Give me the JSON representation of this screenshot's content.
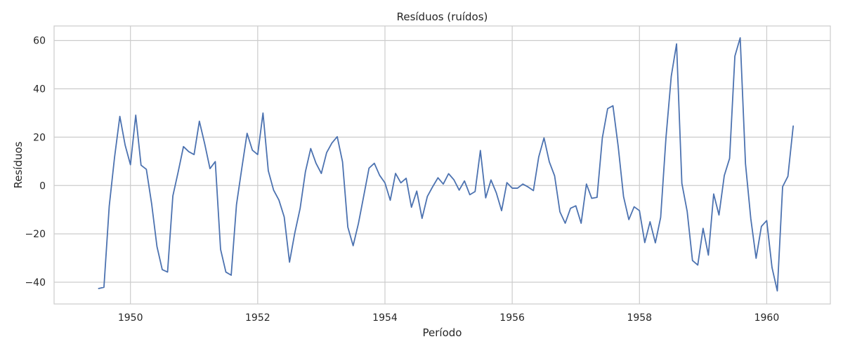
{
  "chart_data": {
    "type": "line",
    "title": "Resíduos (ruídos)",
    "xlabel": "Período",
    "ylabel": "Resíduos",
    "xlim": [
      1948.8,
      1961.0
    ],
    "ylim": [
      -49,
      66
    ],
    "grid": true,
    "x_ticks": [
      1950,
      1952,
      1954,
      1956,
      1958,
      1960
    ],
    "x_tick_labels": [
      "1950",
      "1952",
      "1954",
      "1956",
      "1958",
      "1960"
    ],
    "y_ticks": [
      -40,
      -20,
      0,
      20,
      40,
      60
    ],
    "y_tick_labels": [
      "−40",
      "−20",
      "0",
      "20",
      "40",
      "60"
    ],
    "line_color": "#4c72b0",
    "series": [
      {
        "start": 1949.5,
        "step": 0.08333,
        "values": [
          -42.6,
          -42.1,
          -8.5,
          11.6,
          28.6,
          16.7,
          8.6,
          29.1,
          8.4,
          6.7,
          -7.6,
          -25.2,
          -34.8,
          -35.8,
          -4.3,
          5.6,
          16.1,
          14.0,
          12.8,
          26.6,
          17.3,
          7.0,
          9.9,
          -26.4,
          -35.8,
          -37.1,
          -7.9,
          7.1,
          21.6,
          14.6,
          12.8,
          30.0,
          6.1,
          -1.9,
          -6.0,
          -13.0,
          -31.7,
          -19.6,
          -9.5,
          5.7,
          15.3,
          9.2,
          5.0,
          13.6,
          17.6,
          20.2,
          9.8,
          -17.2,
          -24.9,
          -15.7,
          -4.3,
          7.2,
          9.2,
          4.2,
          1.1,
          -6.1,
          5.0,
          1.1,
          3.0,
          -9.0,
          -2.3,
          -13.6,
          -4.5,
          -0.5,
          3.2,
          0.6,
          4.9,
          2.4,
          -1.9,
          1.9,
          -3.8,
          -2.5,
          14.5,
          -5.1,
          2.3,
          -3.0,
          -10.4,
          1.2,
          -1.1,
          -1.1,
          0.6,
          -0.6,
          -2.1,
          11.8,
          19.7,
          9.8,
          4.0,
          -10.9,
          -15.6,
          -9.4,
          -8.4,
          -15.6,
          0.6,
          -5.3,
          -4.9,
          19.7,
          31.8,
          33.0,
          16.0,
          -4.6,
          -14.1,
          -8.8,
          -10.4,
          -23.6,
          -15.0,
          -23.7,
          -13.2,
          19.7,
          45.2,
          58.6,
          0.9,
          -10.7,
          -31.0,
          -32.9,
          -17.7,
          -28.8,
          -3.5,
          -12.2,
          4.1,
          11.2,
          53.5,
          61.1,
          9.0,
          -13.7,
          -30.1,
          -16.9,
          -14.5,
          -33.9,
          -43.6,
          -0.5,
          3.8,
          24.6
        ]
      }
    ]
  }
}
